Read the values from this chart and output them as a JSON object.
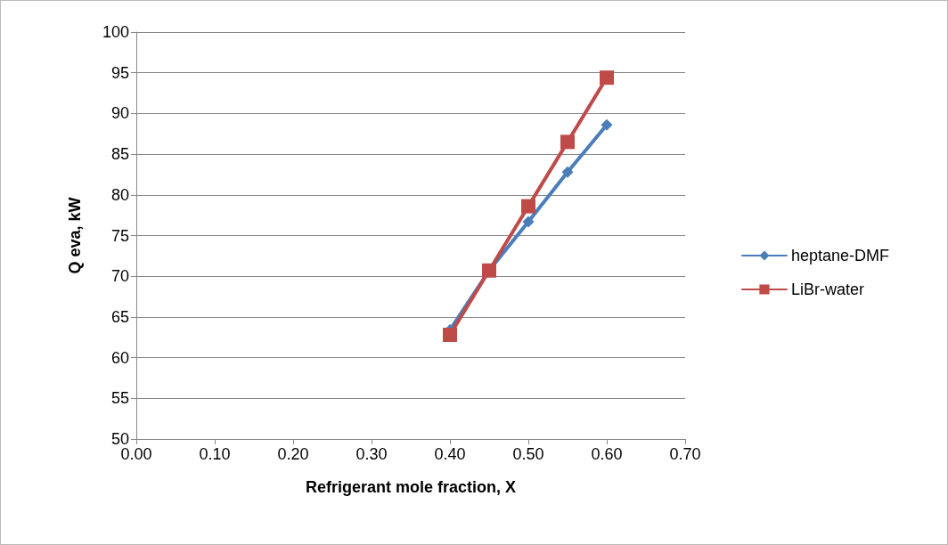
{
  "chart_data": {
    "type": "line",
    "xlabel": "Refrigerant mole fraction, X",
    "ylabel": "Q eva, kW",
    "x": [
      0.4,
      0.45,
      0.5,
      0.55,
      0.6
    ],
    "series": [
      {
        "name": "heptane-DMF",
        "color": "#4a7ebb",
        "marker": "diamond",
        "values": [
          63.4,
          70.7,
          76.7,
          82.8,
          88.6
        ]
      },
      {
        "name": "LiBr-water",
        "color": "#be4b48",
        "marker": "square",
        "values": [
          62.8,
          70.7,
          78.6,
          86.5,
          94.4
        ]
      }
    ],
    "xlim": [
      0,
      0.7
    ],
    "xticks": [
      {
        "value": 0,
        "label": "0.00"
      },
      {
        "value": 0.1,
        "label": "0.10"
      },
      {
        "value": 0.2,
        "label": "0.20"
      },
      {
        "value": 0.3,
        "label": "0.30"
      },
      {
        "value": 0.4,
        "label": "0.40"
      },
      {
        "value": 0.5,
        "label": "0.50"
      },
      {
        "value": 0.6,
        "label": "0.60"
      },
      {
        "value": 0.7,
        "label": "0.70"
      }
    ],
    "ylim": [
      50,
      100
    ],
    "yticks": [
      50,
      55,
      60,
      65,
      70,
      75,
      80,
      85,
      90,
      95,
      100
    ],
    "grid": "y",
    "legend": "right",
    "line_style": "solid"
  }
}
